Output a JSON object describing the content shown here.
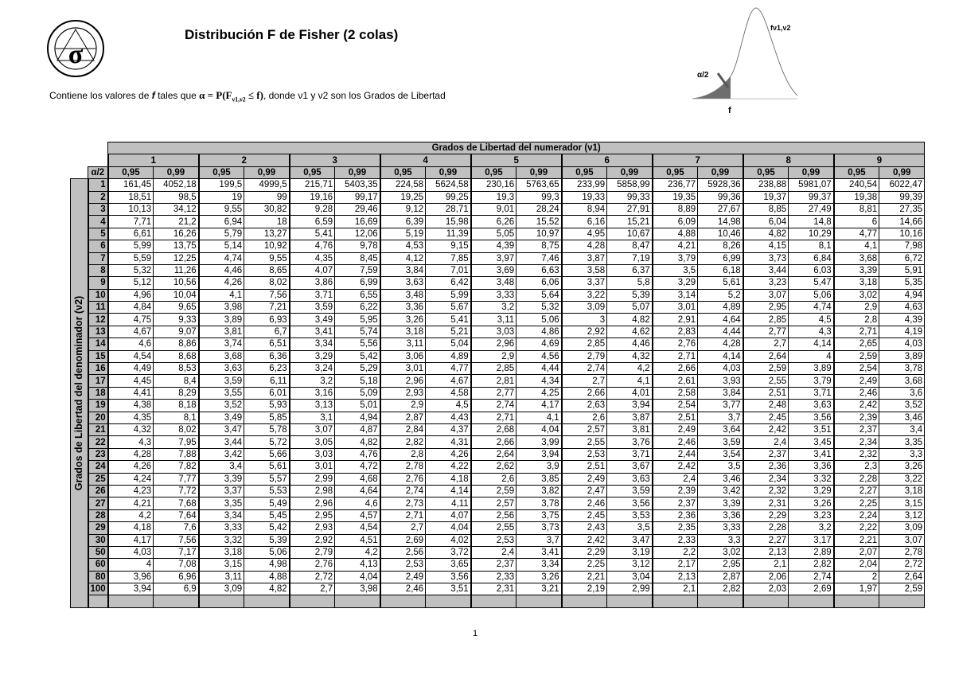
{
  "header": {
    "title": "Distribución F de Fisher (2 colas)",
    "subtitle_pre": "Contiene los valores de ",
    "subtitle_f": "f",
    "subtitle_mid": " tales que ",
    "subtitle_formula": "α = P(F",
    "subtitle_formula_sub": "ν1,ν2",
    "subtitle_formula_end": " ≤ f)",
    "subtitle_post": ", donde ν1 y ν2 son los Grados de Libertad",
    "logo_text": "σ"
  },
  "diagram": {
    "curve_label": "fν1,ν2",
    "alpha_label": "α/2",
    "f_label": "f",
    "fill_color": "#6e6e6e"
  },
  "table": {
    "numerator_title": "Grados de Libertad del numerador (ν1)",
    "denominator_title": "Grados de Libertad del denominador (ν2)",
    "alpha_header": "α/2",
    "groups": [
      "1",
      "2",
      "3",
      "4",
      "5",
      "6",
      "7",
      "8",
      "9"
    ],
    "alpha_cols": [
      "0,95",
      "0,99"
    ],
    "header_color": "#c0c0c0",
    "rows": [
      {
        "v2": "1",
        "values": [
          "161,45",
          "4052,18",
          "199,5",
          "4999,5",
          "215,71",
          "5403,35",
          "224,58",
          "5624,58",
          "230,16",
          "5763,65",
          "233,99",
          "5858,99",
          "236,77",
          "5928,36",
          "238,88",
          "5981,07",
          "240,54",
          "6022,47"
        ]
      },
      {
        "v2": "2",
        "values": [
          "18,51",
          "98,5",
          "19",
          "99",
          "19,16",
          "99,17",
          "19,25",
          "99,25",
          "19,3",
          "99,3",
          "19,33",
          "99,33",
          "19,35",
          "99,36",
          "19,37",
          "99,37",
          "19,38",
          "99,39"
        ]
      },
      {
        "v2": "3",
        "values": [
          "10,13",
          "34,12",
          "9,55",
          "30,82",
          "9,28",
          "29,46",
          "9,12",
          "28,71",
          "9,01",
          "28,24",
          "8,94",
          "27,91",
          "8,89",
          "27,67",
          "8,85",
          "27,49",
          "8,81",
          "27,35"
        ]
      },
      {
        "v2": "4",
        "values": [
          "7,71",
          "21,2",
          "6,94",
          "18",
          "6,59",
          "16,69",
          "6,39",
          "15,98",
          "6,26",
          "15,52",
          "6,16",
          "15,21",
          "6,09",
          "14,98",
          "6,04",
          "14,8",
          "6",
          "14,66"
        ]
      },
      {
        "v2": "5",
        "values": [
          "6,61",
          "16,26",
          "5,79",
          "13,27",
          "5,41",
          "12,06",
          "5,19",
          "11,39",
          "5,05",
          "10,97",
          "4,95",
          "10,67",
          "4,88",
          "10,46",
          "4,82",
          "10,29",
          "4,77",
          "10,16"
        ]
      },
      {
        "v2": "6",
        "values": [
          "5,99",
          "13,75",
          "5,14",
          "10,92",
          "4,76",
          "9,78",
          "4,53",
          "9,15",
          "4,39",
          "8,75",
          "4,28",
          "8,47",
          "4,21",
          "8,26",
          "4,15",
          "8,1",
          "4,1",
          "7,98"
        ]
      },
      {
        "v2": "7",
        "values": [
          "5,59",
          "12,25",
          "4,74",
          "9,55",
          "4,35",
          "8,45",
          "4,12",
          "7,85",
          "3,97",
          "7,46",
          "3,87",
          "7,19",
          "3,79",
          "6,99",
          "3,73",
          "6,84",
          "3,68",
          "6,72"
        ]
      },
      {
        "v2": "8",
        "values": [
          "5,32",
          "11,26",
          "4,46",
          "8,65",
          "4,07",
          "7,59",
          "3,84",
          "7,01",
          "3,69",
          "6,63",
          "3,58",
          "6,37",
          "3,5",
          "6,18",
          "3,44",
          "6,03",
          "3,39",
          "5,91"
        ]
      },
      {
        "v2": "9",
        "values": [
          "5,12",
          "10,56",
          "4,26",
          "8,02",
          "3,86",
          "6,99",
          "3,63",
          "6,42",
          "3,48",
          "6,06",
          "3,37",
          "5,8",
          "3,29",
          "5,61",
          "3,23",
          "5,47",
          "3,18",
          "5,35"
        ]
      },
      {
        "v2": "10",
        "values": [
          "4,96",
          "10,04",
          "4,1",
          "7,56",
          "3,71",
          "6,55",
          "3,48",
          "5,99",
          "3,33",
          "5,64",
          "3,22",
          "5,39",
          "3,14",
          "5,2",
          "3,07",
          "5,06",
          "3,02",
          "4,94"
        ]
      },
      {
        "v2": "11",
        "values": [
          "4,84",
          "9,65",
          "3,98",
          "7,21",
          "3,59",
          "6,22",
          "3,36",
          "5,67",
          "3,2",
          "5,32",
          "3,09",
          "5,07",
          "3,01",
          "4,89",
          "2,95",
          "4,74",
          "2,9",
          "4,63"
        ]
      },
      {
        "v2": "12",
        "values": [
          "4,75",
          "9,33",
          "3,89",
          "6,93",
          "3,49",
          "5,95",
          "3,26",
          "5,41",
          "3,11",
          "5,06",
          "3",
          "4,82",
          "2,91",
          "4,64",
          "2,85",
          "4,5",
          "2,8",
          "4,39"
        ]
      },
      {
        "v2": "13",
        "values": [
          "4,67",
          "9,07",
          "3,81",
          "6,7",
          "3,41",
          "5,74",
          "3,18",
          "5,21",
          "3,03",
          "4,86",
          "2,92",
          "4,62",
          "2,83",
          "4,44",
          "2,77",
          "4,3",
          "2,71",
          "4,19"
        ]
      },
      {
        "v2": "14",
        "values": [
          "4,6",
          "8,86",
          "3,74",
          "6,51",
          "3,34",
          "5,56",
          "3,11",
          "5,04",
          "2,96",
          "4,69",
          "2,85",
          "4,46",
          "2,76",
          "4,28",
          "2,7",
          "4,14",
          "2,65",
          "4,03"
        ]
      },
      {
        "v2": "15",
        "values": [
          "4,54",
          "8,68",
          "3,68",
          "6,36",
          "3,29",
          "5,42",
          "3,06",
          "4,89",
          "2,9",
          "4,56",
          "2,79",
          "4,32",
          "2,71",
          "4,14",
          "2,64",
          "4",
          "2,59",
          "3,89"
        ]
      },
      {
        "v2": "16",
        "values": [
          "4,49",
          "8,53",
          "3,63",
          "6,23",
          "3,24",
          "5,29",
          "3,01",
          "4,77",
          "2,85",
          "4,44",
          "2,74",
          "4,2",
          "2,66",
          "4,03",
          "2,59",
          "3,89",
          "2,54",
          "3,78"
        ]
      },
      {
        "v2": "17",
        "values": [
          "4,45",
          "8,4",
          "3,59",
          "6,11",
          "3,2",
          "5,18",
          "2,96",
          "4,67",
          "2,81",
          "4,34",
          "2,7",
          "4,1",
          "2,61",
          "3,93",
          "2,55",
          "3,79",
          "2,49",
          "3,68"
        ]
      },
      {
        "v2": "18",
        "values": [
          "4,41",
          "8,29",
          "3,55",
          "6,01",
          "3,16",
          "5,09",
          "2,93",
          "4,58",
          "2,77",
          "4,25",
          "2,66",
          "4,01",
          "2,58",
          "3,84",
          "2,51",
          "3,71",
          "2,46",
          "3,6"
        ]
      },
      {
        "v2": "19",
        "values": [
          "4,38",
          "8,18",
          "3,52",
          "5,93",
          "3,13",
          "5,01",
          "2,9",
          "4,5",
          "2,74",
          "4,17",
          "2,63",
          "3,94",
          "2,54",
          "3,77",
          "2,48",
          "3,63",
          "2,42",
          "3,52"
        ]
      },
      {
        "v2": "20",
        "values": [
          "4,35",
          "8,1",
          "3,49",
          "5,85",
          "3,1",
          "4,94",
          "2,87",
          "4,43",
          "2,71",
          "4,1",
          "2,6",
          "3,87",
          "2,51",
          "3,7",
          "2,45",
          "3,56",
          "2,39",
          "3,46"
        ]
      },
      {
        "v2": "21",
        "values": [
          "4,32",
          "8,02",
          "3,47",
          "5,78",
          "3,07",
          "4,87",
          "2,84",
          "4,37",
          "2,68",
          "4,04",
          "2,57",
          "3,81",
          "2,49",
          "3,64",
          "2,42",
          "3,51",
          "2,37",
          "3,4"
        ]
      },
      {
        "v2": "22",
        "values": [
          "4,3",
          "7,95",
          "3,44",
          "5,72",
          "3,05",
          "4,82",
          "2,82",
          "4,31",
          "2,66",
          "3,99",
          "2,55",
          "3,76",
          "2,46",
          "3,59",
          "2,4",
          "3,45",
          "2,34",
          "3,35"
        ]
      },
      {
        "v2": "23",
        "values": [
          "4,28",
          "7,88",
          "3,42",
          "5,66",
          "3,03",
          "4,76",
          "2,8",
          "4,26",
          "2,64",
          "3,94",
          "2,53",
          "3,71",
          "2,44",
          "3,54",
          "2,37",
          "3,41",
          "2,32",
          "3,3"
        ]
      },
      {
        "v2": "24",
        "values": [
          "4,26",
          "7,82",
          "3,4",
          "5,61",
          "3,01",
          "4,72",
          "2,78",
          "4,22",
          "2,62",
          "3,9",
          "2,51",
          "3,67",
          "2,42",
          "3,5",
          "2,36",
          "3,36",
          "2,3",
          "3,26"
        ]
      },
      {
        "v2": "25",
        "values": [
          "4,24",
          "7,77",
          "3,39",
          "5,57",
          "2,99",
          "4,68",
          "2,76",
          "4,18",
          "2,6",
          "3,85",
          "2,49",
          "3,63",
          "2,4",
          "3,46",
          "2,34",
          "3,32",
          "2,28",
          "3,22"
        ]
      },
      {
        "v2": "26",
        "values": [
          "4,23",
          "7,72",
          "3,37",
          "5,53",
          "2,98",
          "4,64",
          "2,74",
          "4,14",
          "2,59",
          "3,82",
          "2,47",
          "3,59",
          "2,39",
          "3,42",
          "2,32",
          "3,29",
          "2,27",
          "3,18"
        ]
      },
      {
        "v2": "27",
        "values": [
          "4,21",
          "7,68",
          "3,35",
          "5,49",
          "2,96",
          "4,6",
          "2,73",
          "4,11",
          "2,57",
          "3,78",
          "2,46",
          "3,56",
          "2,37",
          "3,39",
          "2,31",
          "3,26",
          "2,25",
          "3,15"
        ]
      },
      {
        "v2": "28",
        "values": [
          "4,2",
          "7,64",
          "3,34",
          "5,45",
          "2,95",
          "4,57",
          "2,71",
          "4,07",
          "2,56",
          "3,75",
          "2,45",
          "3,53",
          "2,36",
          "3,36",
          "2,29",
          "3,23",
          "2,24",
          "3,12"
        ]
      },
      {
        "v2": "29",
        "values": [
          "4,18",
          "7,6",
          "3,33",
          "5,42",
          "2,93",
          "4,54",
          "2,7",
          "4,04",
          "2,55",
          "3,73",
          "2,43",
          "3,5",
          "2,35",
          "3,33",
          "2,28",
          "3,2",
          "2,22",
          "3,09"
        ]
      },
      {
        "v2": "30",
        "values": [
          "4,17",
          "7,56",
          "3,32",
          "5,39",
          "2,92",
          "4,51",
          "2,69",
          "4,02",
          "2,53",
          "3,7",
          "2,42",
          "3,47",
          "2,33",
          "3,3",
          "2,27",
          "3,17",
          "2,21",
          "3,07"
        ]
      },
      {
        "v2": "50",
        "values": [
          "4,03",
          "7,17",
          "3,18",
          "5,06",
          "2,79",
          "4,2",
          "2,56",
          "3,72",
          "2,4",
          "3,41",
          "2,29",
          "3,19",
          "2,2",
          "3,02",
          "2,13",
          "2,89",
          "2,07",
          "2,78"
        ]
      },
      {
        "v2": "60",
        "values": [
          "4",
          "7,08",
          "3,15",
          "4,98",
          "2,76",
          "4,13",
          "2,53",
          "3,65",
          "2,37",
          "3,34",
          "2,25",
          "3,12",
          "2,17",
          "2,95",
          "2,1",
          "2,82",
          "2,04",
          "2,72"
        ]
      },
      {
        "v2": "80",
        "values": [
          "3,96",
          "6,96",
          "3,11",
          "4,88",
          "2,72",
          "4,04",
          "2,49",
          "3,56",
          "2,33",
          "3,26",
          "2,21",
          "3,04",
          "2,13",
          "2,87",
          "2,06",
          "2,74",
          "2",
          "2,64"
        ]
      },
      {
        "v2": "100",
        "values": [
          "3,94",
          "6,9",
          "3,09",
          "4,82",
          "2,7",
          "3,98",
          "2,46",
          "3,51",
          "2,31",
          "3,21",
          "2,19",
          "2,99",
          "2,1",
          "2,82",
          "2,03",
          "2,69",
          "1,97",
          "2,59"
        ]
      }
    ]
  },
  "footer": {
    "page_number": "1"
  }
}
